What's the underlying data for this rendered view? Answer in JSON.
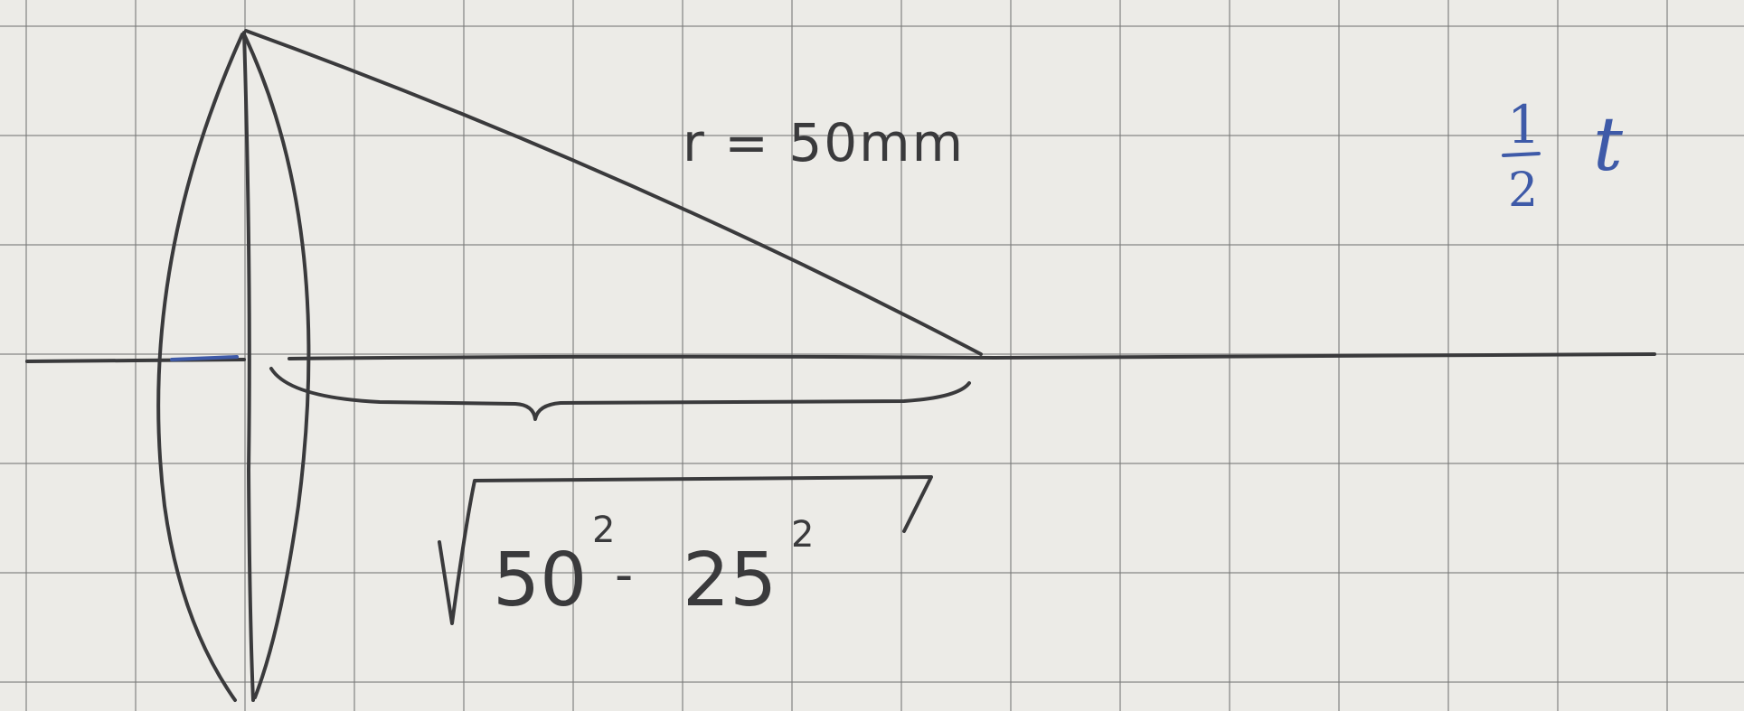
{
  "diagram": {
    "radius_label": "r = 50mm",
    "root_expression": {
      "term1": "50",
      "exp1": "2",
      "operator": "-",
      "term2": "25",
      "exp2": "2"
    },
    "fraction": {
      "numerator": "1",
      "denominator": "2",
      "symbol": "t"
    },
    "colors": {
      "ink": "#3a3a3c",
      "blue_ink": "#3e5aa8",
      "grid": "#8a8a8a",
      "paper": "#ecebe7"
    }
  }
}
